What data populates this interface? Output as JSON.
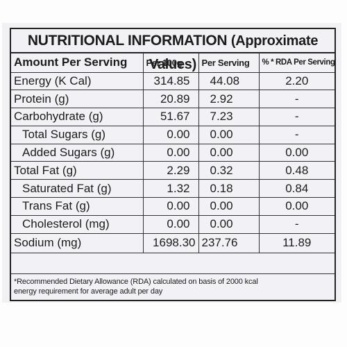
{
  "title": {
    "main": "NUTRITIONAL INFORMATION",
    "sub": "(Approximate Values)"
  },
  "columns": {
    "name": "Amount Per Serving",
    "per_100g": "Per 100g",
    "per_serving": "Per Serving",
    "rda": "% * RDA Per Serving"
  },
  "rows": [
    {
      "name": "Energy (K Cal)",
      "per_100g": "314.85",
      "per_serving": "44.08",
      "rda": "2.20"
    },
    {
      "name": "Protein (g)",
      "per_100g": "20.89",
      "per_serving": "2.92",
      "rda": "-"
    },
    {
      "name": "Carbohydrate (g)",
      "per_100g": "51.67",
      "per_serving": "7.23",
      "rda": "-"
    },
    {
      "name": "Total Sugars (g)",
      "per_100g": "0.00",
      "per_serving": "0.00",
      "rda": "-"
    },
    {
      "name": "Added Sugars (g)",
      "per_100g": "0.00",
      "per_serving": "0.00",
      "rda": "0.00"
    },
    {
      "name": "Total Fat (g)",
      "per_100g": "2.29",
      "per_serving": "0.32",
      "rda": "0.48"
    },
    {
      "name": "Saturated Fat (g)",
      "per_100g": "1.32",
      "per_serving": "0.18",
      "rda": "0.84"
    },
    {
      "name": "Trans Fat (g)",
      "per_100g": "0.00",
      "per_serving": "0.00",
      "rda": "0.00"
    },
    {
      "name": "Cholesterol (mg)",
      "per_100g": "0.00",
      "per_serving": "0.00",
      "rda": "-"
    },
    {
      "name": "Sodium (mg)",
      "per_100g": "1698.30",
      "per_serving": "237.76",
      "rda": "11.89"
    }
  ],
  "footnote": {
    "line1": "*Recommended Dietary Allowance (RDA) calculated on basis of 2000 kcal",
    "line2": "energy requirement for average adult per day"
  }
}
